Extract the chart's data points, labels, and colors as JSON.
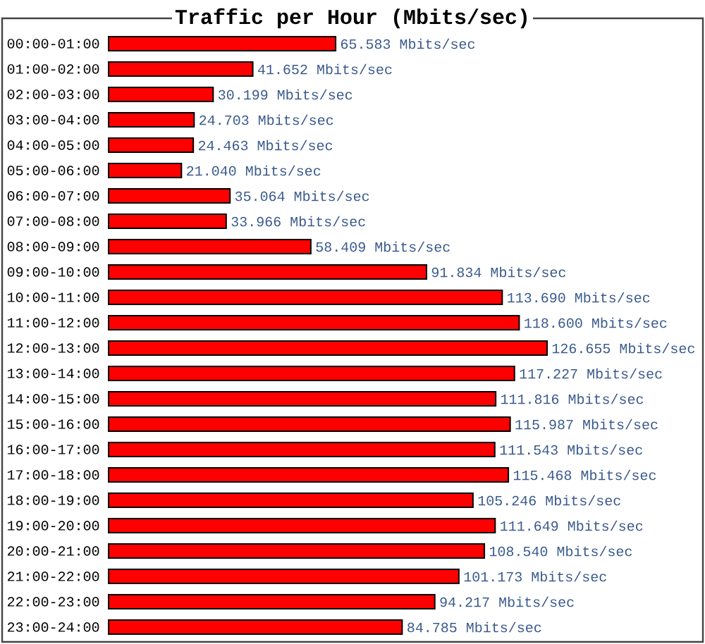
{
  "chart_data": {
    "type": "bar",
    "orientation": "horizontal",
    "title": "Traffic per Hour (Mbits/sec)",
    "categories": [
      "00:00-01:00",
      "01:00-02:00",
      "02:00-03:00",
      "03:00-04:00",
      "04:00-05:00",
      "05:00-06:00",
      "06:00-07:00",
      "07:00-08:00",
      "08:00-09:00",
      "09:00-10:00",
      "10:00-11:00",
      "11:00-12:00",
      "12:00-13:00",
      "13:00-14:00",
      "14:00-15:00",
      "15:00-16:00",
      "16:00-17:00",
      "17:00-18:00",
      "18:00-19:00",
      "19:00-20:00",
      "20:00-21:00",
      "21:00-22:00",
      "22:00-23:00",
      "23:00-24:00"
    ],
    "values": [
      65.583,
      41.652,
      30.199,
      24.703,
      24.463,
      21.04,
      35.064,
      33.966,
      58.409,
      91.834,
      113.69,
      118.6,
      126.655,
      117.227,
      111.816,
      115.987,
      111.543,
      115.468,
      105.246,
      111.649,
      108.54,
      101.173,
      94.217,
      84.785
    ],
    "value_labels": [
      "65.583 Mbits/sec",
      "41.652 Mbits/sec",
      "30.199 Mbits/sec",
      "24.703 Mbits/sec",
      "24.463 Mbits/sec",
      "21.040 Mbits/sec",
      "35.064 Mbits/sec",
      "33.966 Mbits/sec",
      "58.409 Mbits/sec",
      "91.834 Mbits/sec",
      "113.690 Mbits/sec",
      "118.600 Mbits/sec",
      "126.655 Mbits/sec",
      "117.227 Mbits/sec",
      "111.816 Mbits/sec",
      "115.987 Mbits/sec",
      "111.543 Mbits/sec",
      "115.468 Mbits/sec",
      "105.246 Mbits/sec",
      "111.649 Mbits/sec",
      "108.540 Mbits/sec",
      "101.173 Mbits/sec",
      "94.217 Mbits/sec",
      "84.785 Mbits/sec"
    ],
    "color": "#ff0000",
    "tick_labels": "y"
  }
}
